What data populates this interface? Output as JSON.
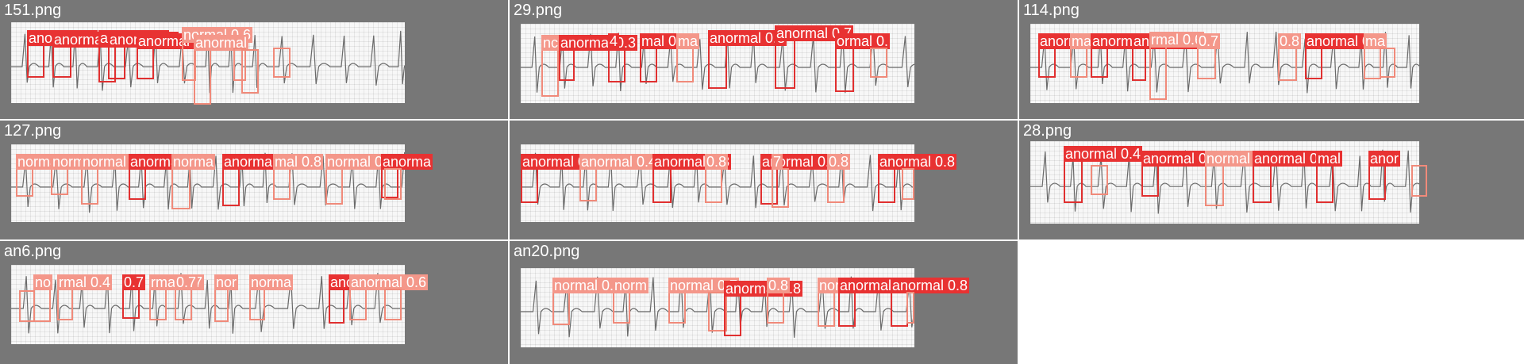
{
  "colors": {
    "strong": "#e03030",
    "light": "#f08a7a",
    "tile_bg": "#777777"
  },
  "tiles": [
    {
      "filename": "151.png",
      "detections": [
        {
          "label": "anormal 0.",
          "strong": true
        },
        {
          "label": "anormal 0.3",
          "strong": true
        },
        {
          "label": "anormal 0.",
          "strong": true
        },
        {
          "label": "anormal 0.",
          "strong": true
        },
        {
          "label": "anormal 0.3",
          "strong": true
        },
        {
          "label": "normal 0.6",
          "strong": false
        },
        {
          "label": "anormal",
          "strong": false
        },
        {
          "label": "",
          "strong": false
        },
        {
          "label": "",
          "strong": false
        },
        {
          "label": "",
          "strong": false
        }
      ]
    },
    {
      "filename": "29.png",
      "detections": [
        {
          "label": "nc",
          "strong": false
        },
        {
          "label": "anormal 0.3",
          "strong": true
        },
        {
          "label": "4",
          "strong": true
        },
        {
          "label": "mal 0.9",
          "strong": true
        },
        {
          "label": "ma",
          "strong": false
        },
        {
          "label": "anormal 0.8",
          "strong": true
        },
        {
          "label": "anormal 0.7",
          "strong": true
        },
        {
          "label": "ormal 0.",
          "strong": true
        },
        {
          "label": "",
          "strong": false
        }
      ]
    },
    {
      "filename": "114.png",
      "detections": [
        {
          "label": "anormal 0.4",
          "strong": true
        },
        {
          "label": "ma",
          "strong": false
        },
        {
          "label": "anormal 0.3",
          "strong": true
        },
        {
          "label": "anormal 0.4",
          "strong": true
        },
        {
          "label": "rmal 0.6",
          "strong": false
        },
        {
          "label": "0.7",
          "strong": false
        },
        {
          "label": "0.8",
          "strong": false
        },
        {
          "label": "anormal 0.7",
          "strong": true
        },
        {
          "label": "ma",
          "strong": false
        },
        {
          "label": "",
          "strong": false
        }
      ]
    },
    {
      "filename": "127.png",
      "detections": [
        {
          "label": "normal 0.",
          "strong": false
        },
        {
          "label": "normal 0.5",
          "strong": false
        },
        {
          "label": "normal 0.7",
          "strong": false
        },
        {
          "label": "anormal 0.6",
          "strong": true
        },
        {
          "label": "norma",
          "strong": false
        },
        {
          "label": "anormal 0.8",
          "strong": true
        },
        {
          "label": "mal 0.8",
          "strong": false
        },
        {
          "label": "normal 0.",
          "strong": false
        },
        {
          "label": "anorma",
          "strong": true
        },
        {
          "label": "",
          "strong": false
        }
      ]
    },
    {
      "filename": "",
      "detections": [
        {
          "label": "anormal 0.",
          "strong": true
        },
        {
          "label": "anormal 0.4",
          "strong": false
        },
        {
          "label": "anormal 0.8",
          "strong": true
        },
        {
          "label": "0.8",
          "strong": false
        },
        {
          "label": "anormal 0.5",
          "strong": true
        },
        {
          "label": "7",
          "strong": false
        },
        {
          "label": "0.8",
          "strong": false
        },
        {
          "label": "anormal 0.8",
          "strong": true
        },
        {
          "label": "",
          "strong": false
        }
      ]
    },
    {
      "filename": "28.png",
      "detections": [
        {
          "label": "anormal 0.4",
          "strong": true
        },
        {
          "label": "",
          "strong": false
        },
        {
          "label": "anormal 0.8",
          "strong": true
        },
        {
          "label": "normal 0.8",
          "strong": false
        },
        {
          "label": "anormal 0.8",
          "strong": true
        },
        {
          "label": "mal",
          "strong": true
        },
        {
          "label": "anor",
          "strong": true
        },
        {
          "label": "",
          "strong": false
        }
      ]
    },
    {
      "filename": "an6.png",
      "detections": [
        {
          "label": "no",
          "strong": false
        },
        {
          "label": "rmal 0.4",
          "strong": false
        },
        {
          "label": "0.7",
          "strong": true
        },
        {
          "label": "rmal 0.7",
          "strong": false
        },
        {
          "label": "0.7",
          "strong": false
        },
        {
          "label": "nor",
          "strong": false
        },
        {
          "label": "norma",
          "strong": false
        },
        {
          "label": "anorma",
          "strong": true
        },
        {
          "label": "anormal 0.6",
          "strong": false
        },
        {
          "label": "",
          "strong": false
        },
        {
          "label": "",
          "strong": false
        }
      ]
    },
    {
      "filename": "an20.png",
      "detections": [
        {
          "label": "normal 0.8",
          "strong": false
        },
        {
          "label": "norm",
          "strong": false
        },
        {
          "label": "normal 0.7",
          "strong": false
        },
        {
          "label": "",
          "strong": false
        },
        {
          "label": "anormal 0.8",
          "strong": true
        },
        {
          "label": "0.8",
          "strong": false
        },
        {
          "label": "normal 0.8",
          "strong": false
        },
        {
          "label": "anormal 0.",
          "strong": true
        },
        {
          "label": "anormal 0.8",
          "strong": true
        },
        {
          "label": "",
          "strong": false
        }
      ]
    }
  ]
}
